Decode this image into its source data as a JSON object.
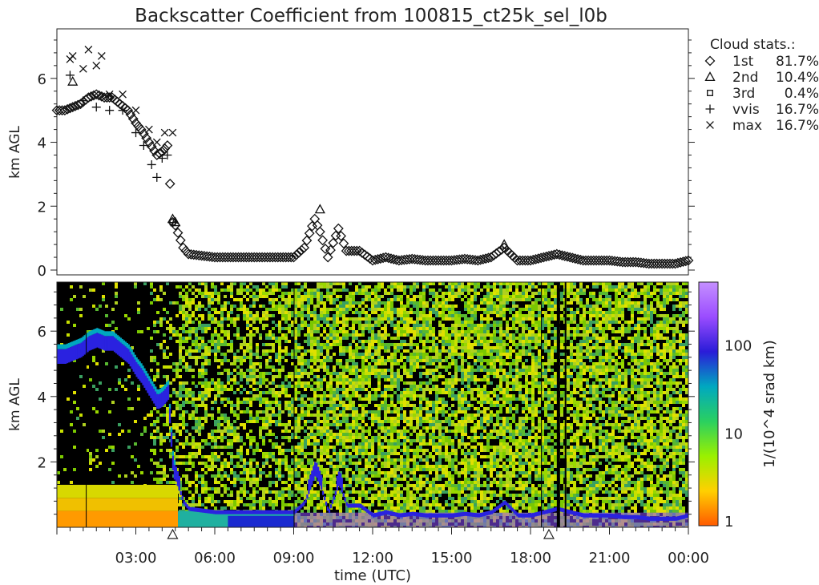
{
  "title": "Backscatter Coefficient from 100815_ct25k_sel_l0b",
  "legend": {
    "title": "Cloud stats.:",
    "entries": [
      {
        "symbol": "diamond",
        "label": "1st",
        "value": "81.7%"
      },
      {
        "symbol": "triangle",
        "label": "2nd",
        "value": "10.4%"
      },
      {
        "symbol": "square",
        "label": "3rd",
        "value": "0.4%"
      },
      {
        "symbol": "plus",
        "label": "vvis",
        "value": "16.7%"
      },
      {
        "symbol": "cross",
        "label": "max",
        "value": "16.7%"
      }
    ]
  },
  "colorbar": {
    "label": "1/(10^4 srad km)",
    "scale": "log",
    "range": [
      1,
      500
    ],
    "ticks": [
      "1",
      "10",
      "100"
    ],
    "colors": [
      "#ff5a00",
      "#ffd000",
      "#9af000",
      "#2ad060",
      "#00a8c0",
      "#2a1cd8",
      "#9a4cff",
      "#c590ff"
    ]
  },
  "chart_data": [
    {
      "type": "scatter",
      "name": "cloud-base-heights",
      "ylabel": "km AGL",
      "xlim": [
        0,
        24
      ],
      "ylim": [
        0,
        7.5
      ],
      "yticks": [
        "0",
        "2",
        "4",
        "6"
      ],
      "series": [
        {
          "symbol": "diamond",
          "x": [
            0.0,
            0.3,
            0.6,
            0.9,
            1.2,
            1.5,
            1.8,
            2.1,
            2.4,
            2.7,
            3.0,
            3.2,
            3.5,
            3.8,
            4.0,
            4.2,
            4.4,
            4.5,
            4.8,
            5.0,
            5.5,
            6.0,
            6.5,
            7.0,
            7.5,
            8.0,
            8.5,
            9.0,
            9.4,
            9.8,
            10.0,
            10.3,
            10.7,
            11.0,
            11.5,
            12.0,
            12.5,
            13.0,
            13.5,
            14.0,
            14.5,
            15.0,
            15.5,
            16.0,
            16.5,
            17.0,
            17.5,
            18.0,
            18.5,
            19.0,
            19.5,
            20.0,
            20.5,
            21.0,
            21.5,
            22.0,
            22.5,
            23.0,
            23.5,
            24.0
          ],
          "y": [
            5.0,
            5.0,
            5.1,
            5.2,
            5.4,
            5.5,
            5.4,
            5.4,
            5.2,
            5.0,
            4.6,
            4.4,
            4.0,
            3.6,
            3.7,
            3.9,
            1.5,
            1.4,
            0.7,
            0.5,
            0.45,
            0.4,
            0.4,
            0.4,
            0.4,
            0.4,
            0.4,
            0.4,
            0.7,
            1.6,
            1.2,
            0.4,
            1.3,
            0.6,
            0.6,
            0.3,
            0.4,
            0.3,
            0.35,
            0.3,
            0.3,
            0.3,
            0.35,
            0.3,
            0.4,
            0.7,
            0.3,
            0.3,
            0.4,
            0.5,
            0.4,
            0.3,
            0.3,
            0.3,
            0.25,
            0.25,
            0.2,
            0.2,
            0.2,
            0.3
          ]
        },
        {
          "symbol": "triangle",
          "x": [
            0.6,
            4.4,
            4.5,
            10.0,
            17.0
          ],
          "y": [
            5.9,
            1.6,
            1.5,
            1.9,
            0.8
          ]
        },
        {
          "symbol": "square",
          "x": [
            4.4
          ],
          "y": [
            1.5
          ]
        },
        {
          "symbol": "plus",
          "x": [
            0.5,
            1.0,
            1.5,
            2.0,
            2.5,
            3.0,
            3.3,
            3.6,
            3.8,
            4.0,
            4.2
          ],
          "y": [
            6.1,
            5.3,
            5.1,
            5.0,
            5.0,
            4.3,
            3.9,
            3.3,
            2.9,
            3.5,
            3.6
          ]
        },
        {
          "symbol": "cross",
          "x": [
            0.5,
            0.6,
            1.0,
            1.2,
            1.5,
            1.7,
            2.0,
            2.5,
            3.0,
            3.5,
            3.8,
            4.1,
            4.4
          ],
          "y": [
            6.6,
            6.7,
            6.3,
            6.9,
            6.4,
            6.7,
            5.5,
            5.5,
            5.0,
            4.4,
            4.0,
            4.3,
            4.3
          ]
        }
      ]
    },
    {
      "type": "heatmap",
      "name": "backscatter",
      "ylabel": "km AGL",
      "xlabel": "time (UTC)",
      "xlim": [
        0,
        24
      ],
      "ylim": [
        0,
        7.5
      ],
      "xticks": [
        "03:00",
        "06:00",
        "09:00",
        "12:00",
        "15:00",
        "18:00",
        "21:00",
        "00:00"
      ],
      "yticks": [
        "2",
        "4",
        "6"
      ],
      "markers_x": [
        4.4,
        18.7
      ]
    }
  ]
}
